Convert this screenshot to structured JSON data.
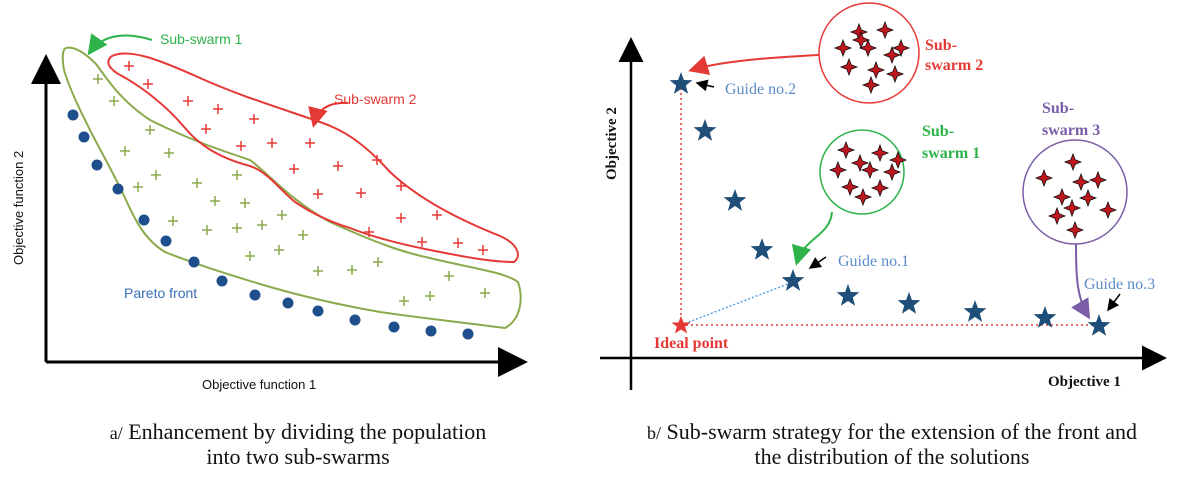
{
  "panel_a": {
    "x_axis_label": "Objective function 1",
    "y_axis_label": "Objective function 2",
    "pareto_label": "Pareto front",
    "subswarm1_label": "Sub-swarm 1",
    "subswarm2_label": "Sub-swarm 2",
    "caption_prefix": "a/",
    "caption_line1": "Enhancement by dividing the population",
    "caption_line2": "into two sub-swarms",
    "colors": {
      "pareto": "#1f4e8c",
      "subswarm1": "#8aaa4c",
      "subswarm2": "#e53935",
      "arrow_green": "#2db34a"
    }
  },
  "panel_b": {
    "x_axis_label": "Objective 1",
    "y_axis_label": "Objective 2",
    "ideal_point_label": "Ideal point",
    "guide1_label": "Guide no.1",
    "guide2_label": "Guide no.2",
    "guide3_label": "Guide no.3",
    "subswarm1_label_l1": "Sub-",
    "subswarm1_label_l2": "swarm 1",
    "subswarm2_label_l1": "Sub-",
    "subswarm2_label_l2": "swarm 2",
    "subswarm3_label_l1": "Sub-",
    "subswarm3_label_l2": "swarm 3",
    "caption_prefix": "b/",
    "caption_line1": "Sub-swarm strategy for the extension of the front and",
    "caption_line2": "the distribution of the solutions",
    "colors": {
      "star": "#1f4e79",
      "ideal": "#e53935",
      "guide_text": "#5b8cc7",
      "subswarm1": "#2db34a",
      "subswarm2": "#e53935",
      "subswarm3": "#7b5ea7"
    }
  }
}
